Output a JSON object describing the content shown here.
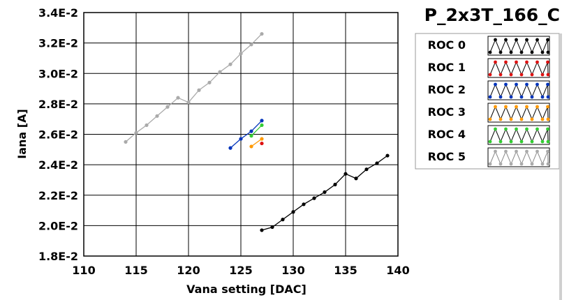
{
  "chart_data": {
    "type": "line",
    "title": "P_2x3T_166_C",
    "xlabel": "Vana setting [DAC]",
    "ylabel": "Iana [A]",
    "xlim": [
      110,
      140
    ],
    "ylim": [
      0.018,
      0.034
    ],
    "x_ticks": [
      110,
      115,
      120,
      125,
      130,
      135,
      140
    ],
    "y_ticks": [
      0.018,
      0.02,
      0.022,
      0.024,
      0.026,
      0.028,
      0.03,
      0.032,
      0.034
    ],
    "x_tick_labels": [
      "110",
      "115",
      "120",
      "125",
      "130",
      "135",
      "140"
    ],
    "y_tick_labels": [
      "1.8E-2",
      "2.0E-2",
      "2.2E-2",
      "2.4E-2",
      "2.6E-2",
      "2.8E-2",
      "3.0E-2",
      "3.2E-2",
      "3.4E-2"
    ],
    "grid": true,
    "legend_position": "right",
    "series": [
      {
        "name": "ROC 0",
        "color": "#000000",
        "x": [
          127,
          128,
          129,
          130,
          131,
          132,
          133,
          134,
          135,
          136,
          137,
          138,
          139
        ],
        "y": [
          0.0197,
          0.0199,
          0.0204,
          0.0209,
          0.0214,
          0.0218,
          0.0222,
          0.0227,
          0.0234,
          0.0231,
          0.0237,
          0.0241,
          0.0246
        ]
      },
      {
        "name": "ROC 1",
        "color": "#dd1111",
        "x": [
          127
        ],
        "y": [
          0.0254
        ]
      },
      {
        "name": "ROC 2",
        "color": "#0033bb",
        "x": [
          124,
          125,
          126,
          127
        ],
        "y": [
          0.0251,
          0.0257,
          0.0262,
          0.0269
        ]
      },
      {
        "name": "ROC 3",
        "color": "#ff9900",
        "x": [
          126,
          127
        ],
        "y": [
          0.0252,
          0.0257
        ]
      },
      {
        "name": "ROC 4",
        "color": "#33cc33",
        "x": [
          126,
          127
        ],
        "y": [
          0.0259,
          0.0266
        ]
      },
      {
        "name": "ROC 5",
        "color": "#aaaaaa",
        "x": [
          114,
          115,
          116,
          117,
          118,
          119,
          120,
          121,
          122,
          123,
          124,
          125,
          126,
          127
        ],
        "y": [
          0.0255,
          0.0261,
          0.0266,
          0.0272,
          0.0278,
          0.0284,
          0.0281,
          0.0289,
          0.0294,
          0.0301,
          0.0306,
          0.0313,
          0.0319,
          0.0326
        ]
      }
    ]
  }
}
